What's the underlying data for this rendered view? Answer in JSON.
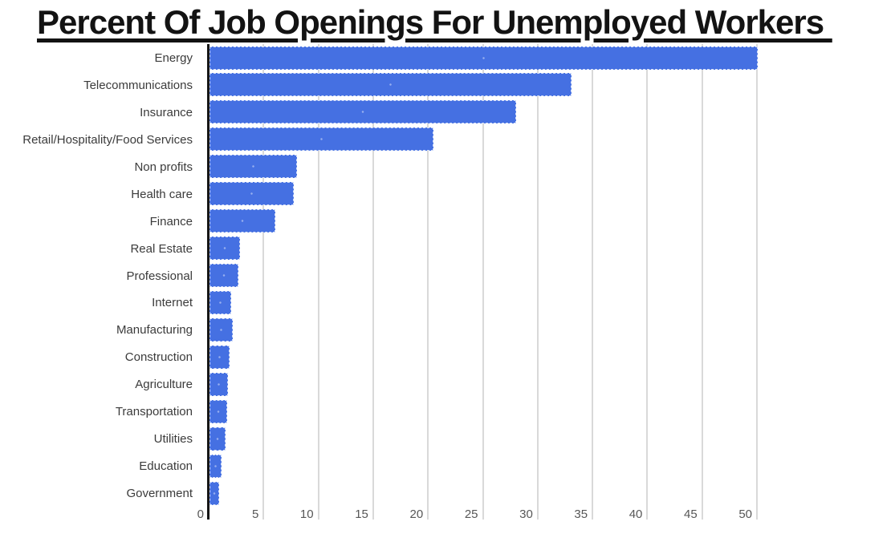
{
  "title": "Percent Of Job Openings For Unemployed Workers ",
  "chart_data": {
    "type": "bar",
    "orientation": "horizontal",
    "title": "Percent Of Job Openings For Unemployed Workers",
    "categories": [
      "Energy",
      "Telecommunications",
      "Insurance",
      "Retail/Hospitality/Food Services",
      "Non profits",
      "Health care",
      "Finance",
      "Real Estate",
      "Professional",
      "Internet",
      "Manufacturing",
      "Construction",
      "Agriculture",
      "Transportation",
      "Utilities",
      "Education",
      "Government"
    ],
    "values": [
      50,
      33,
      28,
      20.4,
      8,
      7.7,
      6,
      2.8,
      2.6,
      2,
      2.1,
      1.8,
      1.7,
      1.6,
      1.5,
      1.1,
      0.9
    ],
    "x_ticks": [
      0,
      5,
      10,
      15,
      20,
      25,
      30,
      35,
      40,
      45,
      50
    ],
    "xlim": [
      0,
      50
    ],
    "xlabel": "",
    "ylabel": "",
    "grid": "vertical",
    "legend": "none",
    "bar_color": "#4570e2",
    "axis_color": "#161616",
    "gridline_color": "#d9d9d9"
  }
}
